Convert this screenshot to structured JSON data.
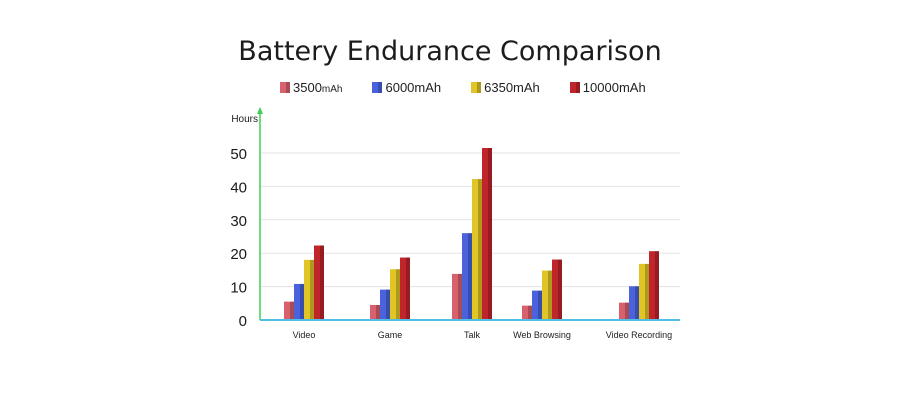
{
  "chart_data": {
    "type": "bar",
    "title": "Battery Endurance Comparison",
    "ylabel": "Hours",
    "xlabel": "",
    "categories": [
      "Video",
      "Game",
      "Talk",
      "Web Browsing",
      "Video Recording"
    ],
    "series": [
      {
        "name": "3500mAh",
        "name_main": "3500",
        "name_unit": "mAh",
        "color": "#d9616e",
        "values": [
          5.5,
          4.5,
          13.8,
          4.3,
          5.2
        ]
      },
      {
        "name": "6000mAh",
        "color": "#4a63dd",
        "values": [
          10.8,
          9.1,
          26.0,
          8.8,
          10.1
        ]
      },
      {
        "name": "6350mAh",
        "color": "#e1c425",
        "values": [
          18.0,
          15.2,
          42.2,
          14.8,
          16.8
        ]
      },
      {
        "name": "10000mAh",
        "color": "#c0252b",
        "values": [
          22.3,
          18.7,
          51.5,
          18.1,
          20.6
        ]
      }
    ],
    "yticks": [
      0,
      10,
      20,
      30,
      40,
      50
    ],
    "ylim": [
      0,
      60
    ],
    "grid": true,
    "legend_position": "top"
  }
}
